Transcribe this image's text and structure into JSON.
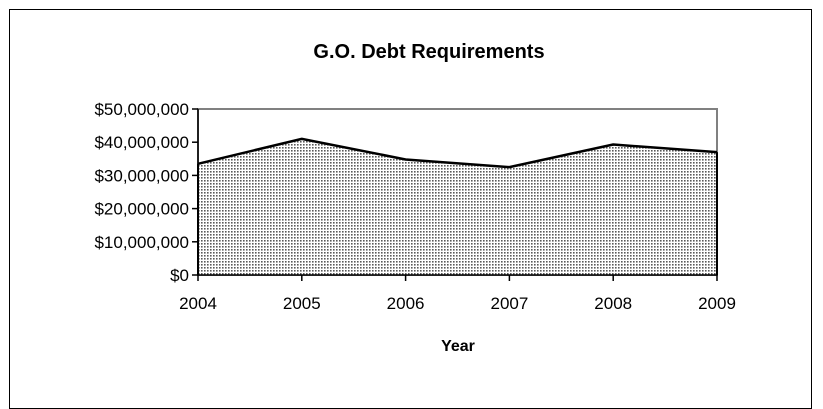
{
  "chart_data": {
    "type": "area",
    "title": "G.O. Debt Requirements",
    "xlabel": "Year",
    "ylabel": "",
    "categories": [
      "2004",
      "2005",
      "2006",
      "2007",
      "2008",
      "2009"
    ],
    "x": [
      2004,
      2005,
      2006,
      2007,
      2008,
      2009
    ],
    "series": [
      {
        "values": [
          33500000,
          41000000,
          34800000,
          32500000,
          39300000,
          37000000
        ]
      }
    ],
    "ylim": [
      0,
      50000000
    ],
    "yticks": [
      0,
      10000000,
      20000000,
      30000000,
      40000000,
      50000000
    ],
    "ytick_labels": [
      "$0",
      "$10,000,000",
      "$20,000,000",
      "$30,000,000",
      "$40,000,000",
      "$50,000,000"
    ],
    "grid": false,
    "legend": "none",
    "fill_pattern": "dotted",
    "colors": {
      "area_fill_base": "#ffffff",
      "area_dot": "#5a5a5a",
      "line": "#000000",
      "plot_border": "#808080",
      "axis": "#000000"
    }
  }
}
